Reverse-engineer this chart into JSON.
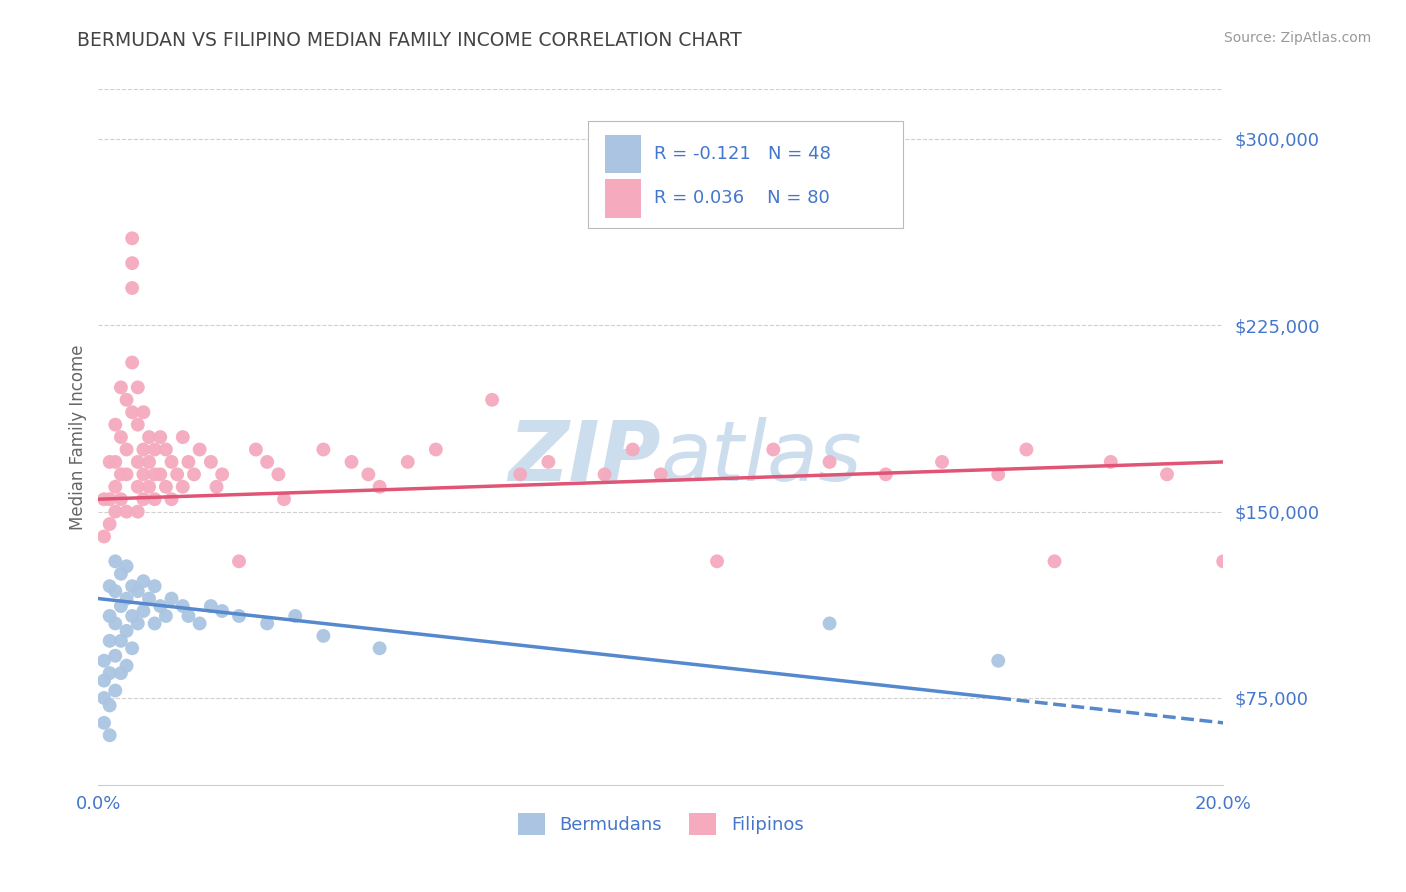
{
  "title": "BERMUDAN VS FILIPINO MEDIAN FAMILY INCOME CORRELATION CHART",
  "source": "Source: ZipAtlas.com",
  "ylabel": "Median Family Income",
  "xlim": [
    0.0,
    0.2
  ],
  "ylim": [
    40000,
    320000
  ],
  "yticks": [
    75000,
    150000,
    225000,
    300000
  ],
  "ytick_labels": [
    "$75,000",
    "$150,000",
    "$225,000",
    "$300,000"
  ],
  "bermudan_R": -0.121,
  "bermudan_N": 48,
  "filipino_R": 0.036,
  "filipino_N": 80,
  "bermudan_dot_color": "#aac4e2",
  "filipino_dot_color": "#f5aabe",
  "bermudan_line_color": "#5588cc",
  "filipino_line_color": "#e05575",
  "title_color": "#444444",
  "axis_label_color": "#666666",
  "tick_color": "#4477cc",
  "grid_color": "#d0d0d0",
  "legend_text_color": "#4477cc",
  "watermark_color": "#ccdded",
  "bermudan_line_y0": 115000,
  "bermudan_line_y1": 65000,
  "filipino_line_y0": 155000,
  "filipino_line_y1": 170000,
  "bermudan_scatter_x": [
    0.001,
    0.001,
    0.001,
    0.001,
    0.002,
    0.002,
    0.002,
    0.002,
    0.002,
    0.002,
    0.003,
    0.003,
    0.003,
    0.003,
    0.003,
    0.004,
    0.004,
    0.004,
    0.004,
    0.005,
    0.005,
    0.005,
    0.005,
    0.006,
    0.006,
    0.006,
    0.007,
    0.007,
    0.008,
    0.008,
    0.009,
    0.01,
    0.01,
    0.011,
    0.012,
    0.013,
    0.015,
    0.016,
    0.018,
    0.02,
    0.022,
    0.025,
    0.03,
    0.035,
    0.04,
    0.05,
    0.13,
    0.16
  ],
  "bermudan_scatter_y": [
    90000,
    82000,
    75000,
    65000,
    120000,
    108000,
    98000,
    85000,
    72000,
    60000,
    130000,
    118000,
    105000,
    92000,
    78000,
    125000,
    112000,
    98000,
    85000,
    128000,
    115000,
    102000,
    88000,
    120000,
    108000,
    95000,
    118000,
    105000,
    122000,
    110000,
    115000,
    120000,
    105000,
    112000,
    108000,
    115000,
    112000,
    108000,
    105000,
    112000,
    110000,
    108000,
    105000,
    108000,
    100000,
    95000,
    105000,
    90000
  ],
  "filipino_scatter_x": [
    0.001,
    0.001,
    0.002,
    0.002,
    0.002,
    0.003,
    0.003,
    0.003,
    0.003,
    0.004,
    0.004,
    0.004,
    0.004,
    0.005,
    0.005,
    0.005,
    0.005,
    0.006,
    0.006,
    0.006,
    0.006,
    0.006,
    0.007,
    0.007,
    0.007,
    0.007,
    0.007,
    0.008,
    0.008,
    0.008,
    0.008,
    0.009,
    0.009,
    0.009,
    0.01,
    0.01,
    0.01,
    0.011,
    0.011,
    0.012,
    0.012,
    0.013,
    0.013,
    0.014,
    0.015,
    0.015,
    0.016,
    0.017,
    0.018,
    0.02,
    0.021,
    0.022,
    0.025,
    0.028,
    0.03,
    0.032,
    0.033,
    0.04,
    0.045,
    0.048,
    0.05,
    0.055,
    0.06,
    0.07,
    0.075,
    0.08,
    0.09,
    0.095,
    0.1,
    0.11,
    0.12,
    0.13,
    0.14,
    0.15,
    0.16,
    0.165,
    0.17,
    0.18,
    0.19,
    0.2
  ],
  "filipino_scatter_y": [
    155000,
    140000,
    170000,
    155000,
    145000,
    185000,
    170000,
    160000,
    150000,
    200000,
    180000,
    165000,
    155000,
    195000,
    175000,
    165000,
    150000,
    260000,
    250000,
    240000,
    210000,
    190000,
    200000,
    185000,
    170000,
    160000,
    150000,
    190000,
    175000,
    165000,
    155000,
    180000,
    170000,
    160000,
    175000,
    165000,
    155000,
    180000,
    165000,
    175000,
    160000,
    170000,
    155000,
    165000,
    180000,
    160000,
    170000,
    165000,
    175000,
    170000,
    160000,
    165000,
    130000,
    175000,
    170000,
    165000,
    155000,
    175000,
    170000,
    165000,
    160000,
    170000,
    175000,
    195000,
    165000,
    170000,
    165000,
    175000,
    165000,
    130000,
    175000,
    170000,
    165000,
    170000,
    165000,
    175000,
    130000,
    170000,
    165000,
    130000
  ]
}
